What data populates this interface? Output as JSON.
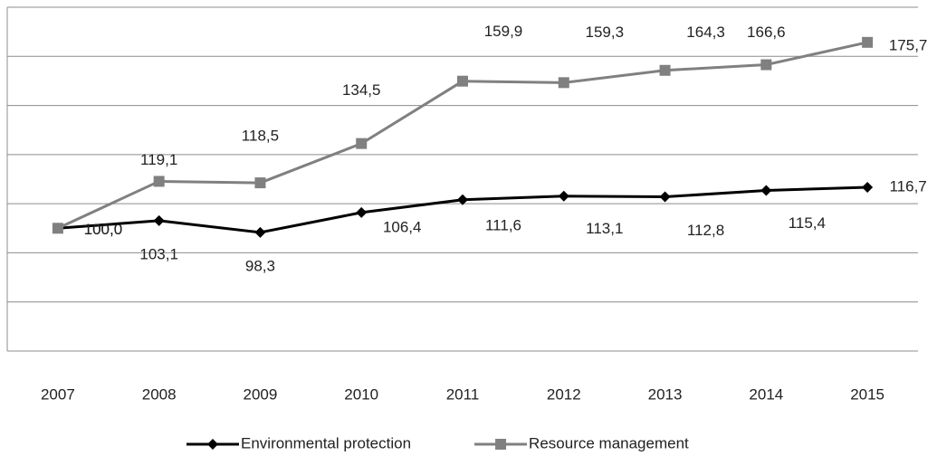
{
  "chart_data": {
    "type": "line",
    "categories": [
      "2007",
      "2008",
      "2009",
      "2010",
      "2011",
      "2012",
      "2013",
      "2014",
      "2015"
    ],
    "series": [
      {
        "name": "Environmental protection",
        "color": "#000000",
        "marker": "diamond",
        "values": [
          100.0,
          103.1,
          98.3,
          106.4,
          111.6,
          113.1,
          112.8,
          115.4,
          116.7
        ],
        "value_labels": [
          "100,0",
          "103,1",
          "98,3",
          "106,4",
          "111,6",
          "113,1",
          "112,8",
          "115,4",
          "116,7"
        ]
      },
      {
        "name": "Resource management",
        "color": "#808080",
        "marker": "square",
        "values": [
          100.0,
          119.1,
          118.5,
          134.5,
          159.9,
          159.3,
          164.3,
          166.6,
          175.7
        ],
        "value_labels": [
          "100,0",
          "119,1",
          "118,5",
          "134,5",
          "159,9",
          "159,3",
          "164,3",
          "166,6",
          "175,7"
        ]
      }
    ],
    "ylim": [
      50,
      190
    ],
    "yticks": [
      50,
      70,
      90,
      110,
      130,
      150,
      170,
      190
    ],
    "grid": true,
    "legend": "bottom"
  }
}
